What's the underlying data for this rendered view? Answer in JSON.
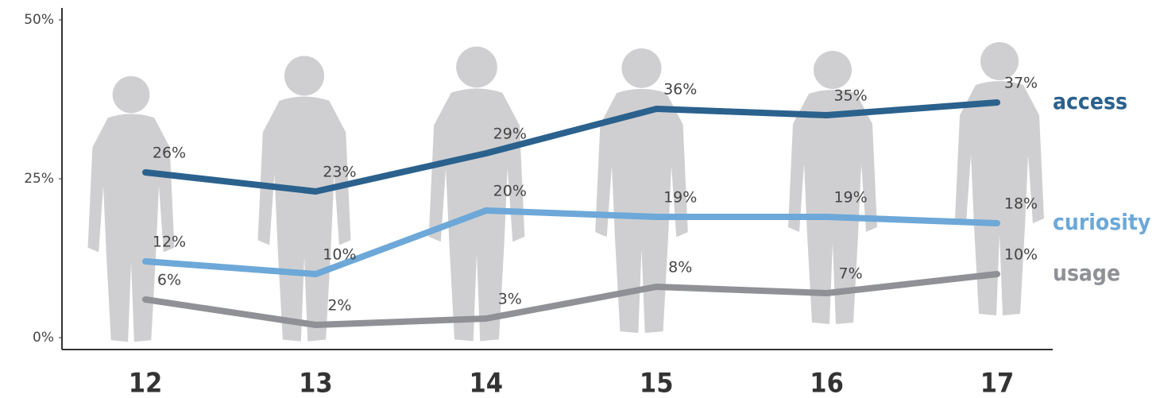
{
  "chart_data": {
    "type": "line",
    "categories": [
      "12",
      "13",
      "14",
      "15",
      "16",
      "17"
    ],
    "series": [
      {
        "name": "access",
        "color": "#2b618d",
        "values": [
          26,
          23,
          29,
          36,
          35,
          37
        ],
        "value_labels": [
          "26%",
          "23%",
          "29%",
          "36%",
          "35%",
          "37%"
        ]
      },
      {
        "name": "curiosity",
        "color": "#6da8d8",
        "values": [
          12,
          10,
          20,
          19,
          19,
          18
        ],
        "value_labels": [
          "12%",
          "10%",
          "20%",
          "19%",
          "19%",
          "18%"
        ]
      },
      {
        "name": "usage",
        "color": "#8f9197",
        "values": [
          6,
          2,
          3,
          8,
          7,
          10
        ],
        "value_labels": [
          "6%",
          "2%",
          "3%",
          "8%",
          "7%",
          "10%"
        ]
      }
    ],
    "ylim": [
      0,
      50
    ],
    "yticks": [
      {
        "value": 0,
        "label": "0%"
      },
      {
        "value": 25,
        "label": "25%"
      },
      {
        "value": 50,
        "label": "50%"
      }
    ]
  }
}
